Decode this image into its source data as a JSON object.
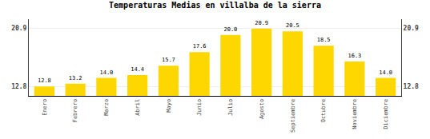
{
  "chart_data": {
    "type": "bar",
    "title": "Temperaturas Medias en villalba de la sierra",
    "categories": [
      "Enero",
      "Febrero",
      "Marzo",
      "Abril",
      "Mayo",
      "Junio",
      "Julio",
      "Agosto",
      "Septiembre",
      "Octubre",
      "Noviembre",
      "Diciembre"
    ],
    "values": [
      12.8,
      13.2,
      14.0,
      14.4,
      15.7,
      17.6,
      20.0,
      20.9,
      20.5,
      18.5,
      16.3,
      14.0
    ],
    "value_labels": [
      "12.8",
      "13.2",
      "14.0",
      "14.4",
      "15.7",
      "17.6",
      "20.0",
      "20.9",
      "20.5",
      "18.5",
      "16.3",
      "14.0"
    ],
    "data_labels": true,
    "color": "#FFD700",
    "ylim": [
      11.5,
      22.2
    ],
    "yticks": [
      12.8,
      20.9
    ],
    "y2lim": [
      11.5,
      22.2
    ],
    "y2ticks": [
      12.8,
      20.9
    ],
    "grid": true
  }
}
